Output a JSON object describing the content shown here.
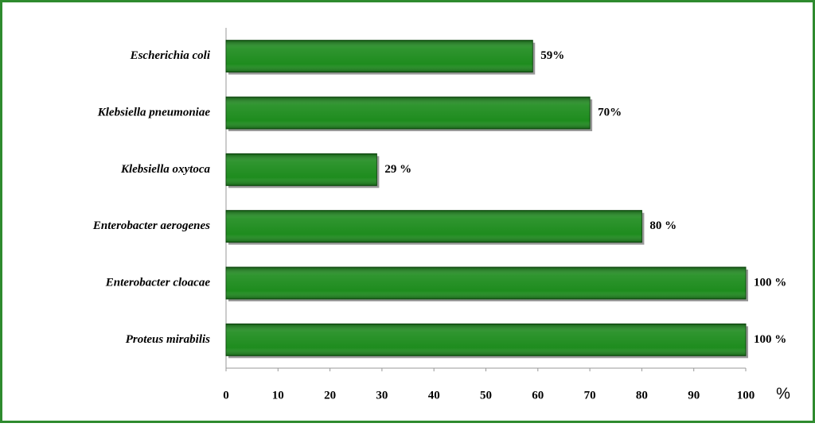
{
  "chart_data": {
    "type": "barh",
    "categories": [
      "Escherichia coli",
      "Klebsiella pneumoniae",
      "Klebsiella oxytoca",
      "Enterobacter aerogenes",
      "Enterobacter cloacae",
      "Proteus mirabilis"
    ],
    "values": [
      59,
      70,
      29,
      80,
      100,
      100
    ],
    "value_labels": [
      "59%",
      "70%",
      "29 %",
      "80 %",
      "100 %",
      "100 %"
    ],
    "color": "#1e8c1e",
    "xlabel": "%",
    "xlim": [
      0,
      100
    ],
    "xticks": [
      0,
      10,
      20,
      30,
      40,
      50,
      60,
      70,
      80,
      90,
      100
    ],
    "grid": false
  }
}
